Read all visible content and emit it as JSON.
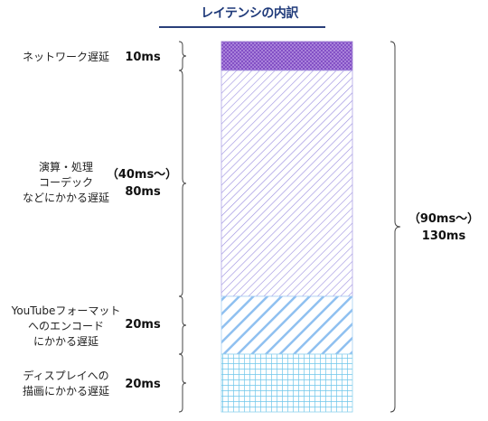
{
  "title": "レイテンシの内訳",
  "segments": [
    {
      "lines": [
        "ネットワーク遅延"
      ],
      "value": "10ms",
      "pattern": "crosshatch-purple"
    },
    {
      "lines": [
        "演算・処理",
        "コーデック",
        "などにかかる遅延"
      ],
      "value_range": "（40ms〜）",
      "value": "80ms",
      "pattern": "diagonal-lavender"
    },
    {
      "lines": [
        "YouTubeフォーマット",
        "へのエンコード",
        "にかかる遅延"
      ],
      "value": "20ms",
      "pattern": "diagonal-lightblue"
    },
    {
      "lines": [
        "ディスプレイへの",
        "描画にかかる遅延"
      ],
      "value": "20ms",
      "pattern": "grid-cyan"
    }
  ],
  "total": {
    "range": "（90ms〜）",
    "value": "130ms"
  },
  "colors": {
    "title": "#1f3a7a",
    "rule": "#2a3f7a",
    "network": "#9966cc",
    "processing": "#9a8de0",
    "encode": "#8fc0f0",
    "display": "#6ec6ea"
  }
}
